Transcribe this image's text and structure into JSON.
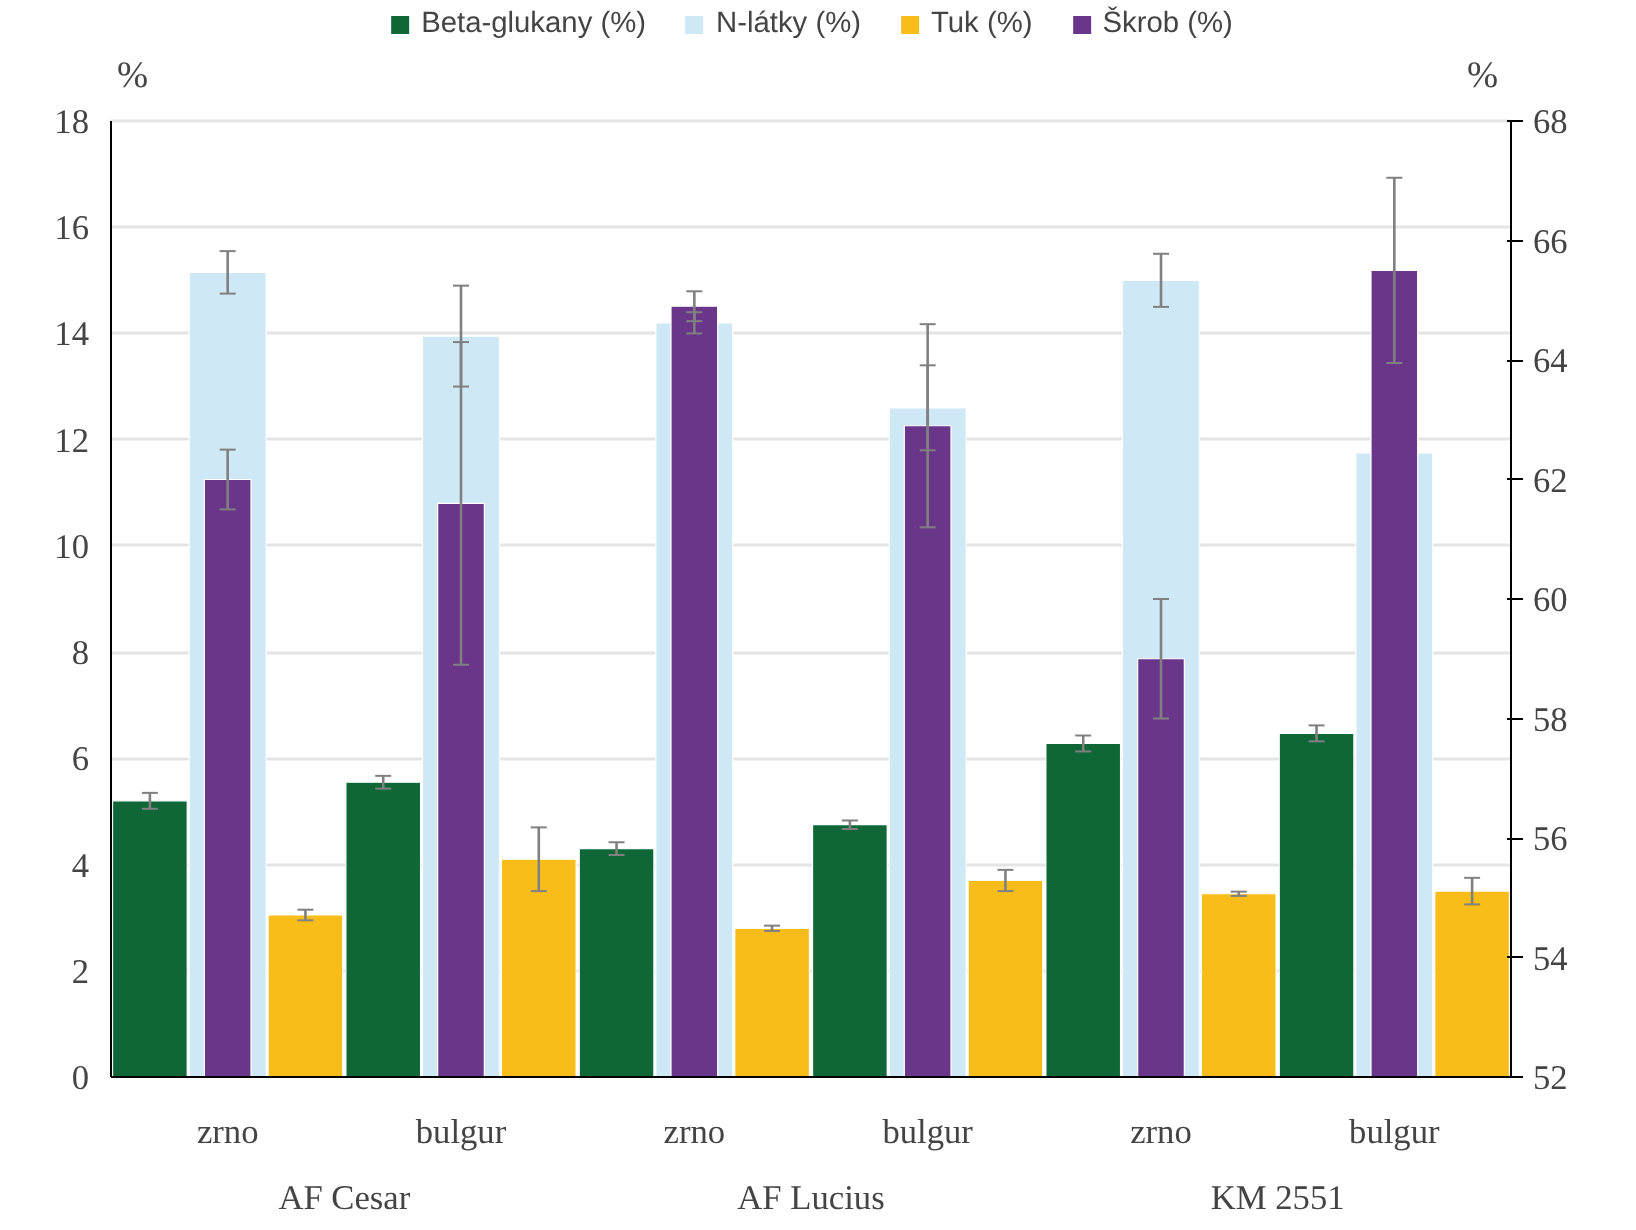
{
  "chart_data": {
    "type": "bar",
    "ylabel": "%",
    "y2label": "%",
    "categories": [
      "zrno",
      "bulgur",
      "zrno",
      "bulgur",
      "zrno",
      "bulgur"
    ],
    "annotations": [
      "AF Cesar",
      "AF Lucius",
      "KM 2551"
    ],
    "series": [
      {
        "name": "Beta-glukany (%)",
        "color": "#0f6637",
        "values": [
          5.2,
          5.55,
          4.3,
          4.75,
          6.28,
          6.47
        ],
        "errors": [
          0.15,
          0.12,
          0.12,
          0.08,
          0.15,
          0.15
        ]
      },
      {
        "name": "N-látky (%)",
        "color": "#cfe8f6",
        "values": [
          15.15,
          13.95,
          14.2,
          12.6,
          15.0,
          11.75
        ],
        "errors": [
          0.4,
          0.95,
          0.2,
          0.8,
          0.5,
          null
        ]
      },
      {
        "name": "Tuk (%)",
        "color": "#f9bd19",
        "values": [
          3.05,
          4.1,
          2.8,
          3.7,
          3.45,
          3.5
        ],
        "errors": [
          0.1,
          0.6,
          0.05,
          0.2,
          0.04,
          0.25
        ]
      },
      {
        "name": "Škrob (%)",
        "color": "#6a368a",
        "axis": "y2",
        "values": [
          62.0,
          61.6,
          64.9,
          62.9,
          59.0,
          65.5
        ],
        "errors": [
          0.5,
          2.7,
          0.25,
          1.7,
          1.0,
          1.55
        ]
      }
    ],
    "ylim": [
      0,
      18
    ],
    "yticks": [
      0,
      2,
      4,
      6,
      8,
      10,
      12,
      14,
      16,
      18
    ],
    "y2lim": [
      52,
      68
    ],
    "y2ticks": [
      52,
      54,
      56,
      58,
      60,
      62,
      64,
      66,
      68
    ],
    "grid": "y",
    "legend": "top"
  }
}
